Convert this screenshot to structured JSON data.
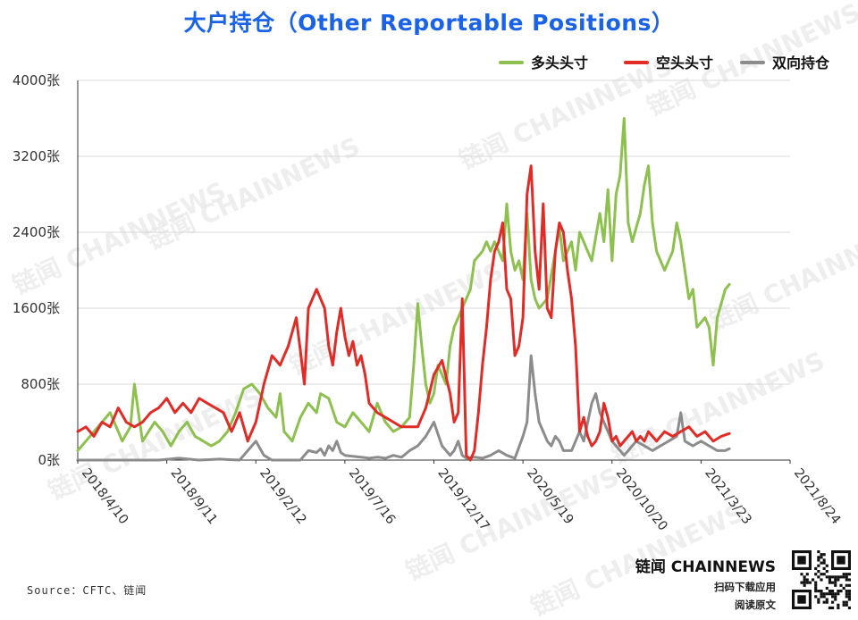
{
  "title": "大户持仓（Other Reportable Positions）",
  "source": "Source：CFTC、链闻",
  "brand": {
    "name": "链闻 CHAINNEWS",
    "line1": "扫码下载应用",
    "line2": "阅读原文"
  },
  "watermark": "链闻 CHAINNEWS",
  "chart_data": {
    "type": "line",
    "title": "大户持仓（Other Reportable Positions）",
    "legend_position": "top-right",
    "ylim": [
      0,
      4000
    ],
    "ytick_labels": [
      "0张",
      "800张",
      "1600张",
      "2400张",
      "3200张",
      "4000张"
    ],
    "ytick_values": [
      0,
      800,
      1600,
      2400,
      3200,
      4000
    ],
    "xtick_labels": [
      "2018/4/10",
      "2018/9/11",
      "2019/2/12",
      "2019/7/16",
      "2019/12/17",
      "2020/5/19",
      "2020/10/20",
      "2021/3/23",
      "2021/8/24"
    ],
    "grid": "horizontal",
    "n_points": 177,
    "series": [
      {
        "name": "多头头寸",
        "color": "#8dc04e",
        "keypoints": [
          [
            0,
            100
          ],
          [
            3,
            250
          ],
          [
            6,
            400
          ],
          [
            8,
            500
          ],
          [
            11,
            200
          ],
          [
            13,
            350
          ],
          [
            14,
            800
          ],
          [
            16,
            200
          ],
          [
            19,
            400
          ],
          [
            21,
            300
          ],
          [
            23,
            150
          ],
          [
            25,
            300
          ],
          [
            27,
            400
          ],
          [
            29,
            250
          ],
          [
            31,
            200
          ],
          [
            33,
            150
          ],
          [
            35,
            200
          ],
          [
            37,
            300
          ],
          [
            39,
            500
          ],
          [
            41,
            750
          ],
          [
            43,
            800
          ],
          [
            45,
            700
          ],
          [
            47,
            550
          ],
          [
            49,
            450
          ],
          [
            50,
            700
          ],
          [
            51,
            300
          ],
          [
            53,
            200
          ],
          [
            55,
            450
          ],
          [
            57,
            600
          ],
          [
            59,
            500
          ],
          [
            60,
            700
          ],
          [
            62,
            650
          ],
          [
            64,
            400
          ],
          [
            66,
            350
          ],
          [
            68,
            500
          ],
          [
            70,
            400
          ],
          [
            72,
            300
          ],
          [
            74,
            600
          ],
          [
            76,
            400
          ],
          [
            78,
            300
          ],
          [
            80,
            350
          ],
          [
            82,
            450
          ],
          [
            83,
            1000
          ],
          [
            84,
            1650
          ],
          [
            85,
            1200
          ],
          [
            86,
            800
          ],
          [
            87,
            600
          ],
          [
            88,
            700
          ],
          [
            89,
            1000
          ],
          [
            90,
            900
          ],
          [
            91,
            800
          ],
          [
            92,
            1200
          ],
          [
            93,
            1400
          ],
          [
            95,
            1600
          ],
          [
            97,
            1800
          ],
          [
            98,
            2100
          ],
          [
            100,
            2200
          ],
          [
            101,
            2300
          ],
          [
            102,
            2200
          ],
          [
            103,
            2300
          ],
          [
            105,
            2100
          ],
          [
            106,
            2700
          ],
          [
            107,
            2200
          ],
          [
            108,
            2000
          ],
          [
            109,
            2100
          ],
          [
            110,
            1900
          ],
          [
            111,
            2600
          ],
          [
            112,
            1900
          ],
          [
            113,
            1700
          ],
          [
            114,
            1600
          ],
          [
            116,
            1700
          ],
          [
            118,
            2200
          ],
          [
            119,
            2450
          ],
          [
            120,
            2100
          ],
          [
            122,
            2300
          ],
          [
            123,
            2000
          ],
          [
            124,
            2400
          ],
          [
            125,
            2300
          ],
          [
            127,
            2100
          ],
          [
            129,
            2600
          ],
          [
            130,
            2300
          ],
          [
            131,
            2850
          ],
          [
            132,
            2100
          ],
          [
            133,
            2800
          ],
          [
            134,
            3000
          ],
          [
            135,
            3600
          ],
          [
            136,
            2500
          ],
          [
            137,
            2300
          ],
          [
            139,
            2600
          ],
          [
            140,
            2900
          ],
          [
            141,
            3100
          ],
          [
            142,
            2500
          ],
          [
            143,
            2200
          ],
          [
            144,
            2100
          ],
          [
            145,
            2000
          ],
          [
            147,
            2200
          ],
          [
            148,
            2500
          ],
          [
            149,
            2300
          ],
          [
            150,
            2000
          ],
          [
            151,
            1700
          ],
          [
            152,
            1800
          ],
          [
            153,
            1400
          ],
          [
            155,
            1500
          ],
          [
            156,
            1400
          ],
          [
            157,
            1000
          ],
          [
            158,
            1500
          ],
          [
            160,
            1800
          ],
          [
            161,
            1850
          ]
        ]
      },
      {
        "name": "空头头寸",
        "color": "#e02b27",
        "keypoints": [
          [
            0,
            300
          ],
          [
            2,
            350
          ],
          [
            4,
            250
          ],
          [
            6,
            400
          ],
          [
            8,
            350
          ],
          [
            10,
            550
          ],
          [
            12,
            400
          ],
          [
            14,
            350
          ],
          [
            16,
            400
          ],
          [
            18,
            500
          ],
          [
            20,
            550
          ],
          [
            22,
            650
          ],
          [
            24,
            500
          ],
          [
            26,
            600
          ],
          [
            28,
            500
          ],
          [
            30,
            650
          ],
          [
            32,
            600
          ],
          [
            34,
            550
          ],
          [
            36,
            500
          ],
          [
            38,
            300
          ],
          [
            40,
            500
          ],
          [
            42,
            200
          ],
          [
            44,
            400
          ],
          [
            45,
            600
          ],
          [
            46,
            800
          ],
          [
            48,
            1100
          ],
          [
            50,
            1000
          ],
          [
            52,
            1200
          ],
          [
            54,
            1500
          ],
          [
            56,
            800
          ],
          [
            57,
            1600
          ],
          [
            59,
            1800
          ],
          [
            61,
            1600
          ],
          [
            62,
            1200
          ],
          [
            63,
            1000
          ],
          [
            64,
            1350
          ],
          [
            65,
            1600
          ],
          [
            66,
            1300
          ],
          [
            67,
            1100
          ],
          [
            68,
            1250
          ],
          [
            69,
            1000
          ],
          [
            70,
            1100
          ],
          [
            71,
            900
          ],
          [
            72,
            600
          ],
          [
            74,
            500
          ],
          [
            76,
            450
          ],
          [
            78,
            400
          ],
          [
            80,
            350
          ],
          [
            82,
            350
          ],
          [
            84,
            350
          ],
          [
            86,
            550
          ],
          [
            88,
            900
          ],
          [
            90,
            1050
          ],
          [
            92,
            700
          ],
          [
            93,
            400
          ],
          [
            94,
            500
          ],
          [
            95,
            1700
          ],
          [
            96,
            50
          ],
          [
            97,
            0
          ],
          [
            98,
            100
          ],
          [
            99,
            500
          ],
          [
            100,
            1000
          ],
          [
            101,
            1400
          ],
          [
            102,
            1900
          ],
          [
            103,
            2200
          ],
          [
            104,
            2300
          ],
          [
            105,
            2500
          ],
          [
            106,
            1800
          ],
          [
            107,
            1700
          ],
          [
            108,
            1100
          ],
          [
            109,
            1200
          ],
          [
            110,
            1500
          ],
          [
            111,
            2800
          ],
          [
            112,
            3100
          ],
          [
            113,
            2200
          ],
          [
            114,
            1800
          ],
          [
            115,
            2700
          ],
          [
            116,
            1600
          ],
          [
            117,
            1500
          ],
          [
            118,
            2200
          ],
          [
            119,
            2500
          ],
          [
            120,
            2400
          ],
          [
            121,
            2000
          ],
          [
            122,
            1700
          ],
          [
            123,
            1200
          ],
          [
            124,
            300
          ],
          [
            125,
            450
          ],
          [
            126,
            250
          ],
          [
            127,
            150
          ],
          [
            128,
            200
          ],
          [
            129,
            300
          ],
          [
            130,
            600
          ],
          [
            131,
            450
          ],
          [
            132,
            200
          ],
          [
            133,
            250
          ],
          [
            134,
            150
          ],
          [
            135,
            200
          ],
          [
            136,
            250
          ],
          [
            137,
            300
          ],
          [
            138,
            200
          ],
          [
            139,
            250
          ],
          [
            140,
            200
          ],
          [
            141,
            300
          ],
          [
            142,
            250
          ],
          [
            143,
            200
          ],
          [
            145,
            300
          ],
          [
            147,
            250
          ],
          [
            149,
            300
          ],
          [
            151,
            350
          ],
          [
            153,
            250
          ],
          [
            155,
            300
          ],
          [
            157,
            200
          ],
          [
            159,
            250
          ],
          [
            161,
            280
          ]
        ]
      },
      {
        "name": "双向持仓",
        "color": "#8c8c8c",
        "keypoints": [
          [
            0,
            0
          ],
          [
            20,
            0
          ],
          [
            25,
            20
          ],
          [
            30,
            0
          ],
          [
            35,
            10
          ],
          [
            40,
            0
          ],
          [
            42,
            100
          ],
          [
            44,
            200
          ],
          [
            46,
            50
          ],
          [
            48,
            0
          ],
          [
            55,
            0
          ],
          [
            57,
            100
          ],
          [
            59,
            80
          ],
          [
            60,
            120
          ],
          [
            61,
            50
          ],
          [
            62,
            150
          ],
          [
            63,
            100
          ],
          [
            64,
            200
          ],
          [
            65,
            80
          ],
          [
            66,
            50
          ],
          [
            68,
            40
          ],
          [
            70,
            30
          ],
          [
            72,
            20
          ],
          [
            74,
            30
          ],
          [
            76,
            20
          ],
          [
            78,
            50
          ],
          [
            80,
            30
          ],
          [
            82,
            100
          ],
          [
            84,
            150
          ],
          [
            86,
            250
          ],
          [
            88,
            400
          ],
          [
            90,
            150
          ],
          [
            92,
            50
          ],
          [
            93,
            100
          ],
          [
            94,
            200
          ],
          [
            95,
            50
          ],
          [
            96,
            20
          ],
          [
            98,
            30
          ],
          [
            100,
            20
          ],
          [
            102,
            50
          ],
          [
            104,
            100
          ],
          [
            106,
            50
          ],
          [
            108,
            20
          ],
          [
            110,
            250
          ],
          [
            111,
            400
          ],
          [
            112,
            1100
          ],
          [
            113,
            700
          ],
          [
            114,
            400
          ],
          [
            115,
            300
          ],
          [
            116,
            200
          ],
          [
            117,
            150
          ],
          [
            118,
            250
          ],
          [
            119,
            200
          ],
          [
            120,
            100
          ],
          [
            122,
            100
          ],
          [
            124,
            300
          ],
          [
            125,
            200
          ],
          [
            126,
            400
          ],
          [
            127,
            600
          ],
          [
            128,
            700
          ],
          [
            129,
            500
          ],
          [
            130,
            400
          ],
          [
            131,
            300
          ],
          [
            132,
            200
          ],
          [
            133,
            150
          ],
          [
            134,
            100
          ],
          [
            135,
            50
          ],
          [
            136,
            100
          ],
          [
            137,
            150
          ],
          [
            138,
            200
          ],
          [
            140,
            150
          ],
          [
            142,
            100
          ],
          [
            144,
            150
          ],
          [
            146,
            200
          ],
          [
            148,
            250
          ],
          [
            149,
            500
          ],
          [
            150,
            200
          ],
          [
            152,
            150
          ],
          [
            154,
            200
          ],
          [
            156,
            150
          ],
          [
            158,
            100
          ],
          [
            160,
            100
          ],
          [
            161,
            120
          ]
        ]
      }
    ]
  }
}
